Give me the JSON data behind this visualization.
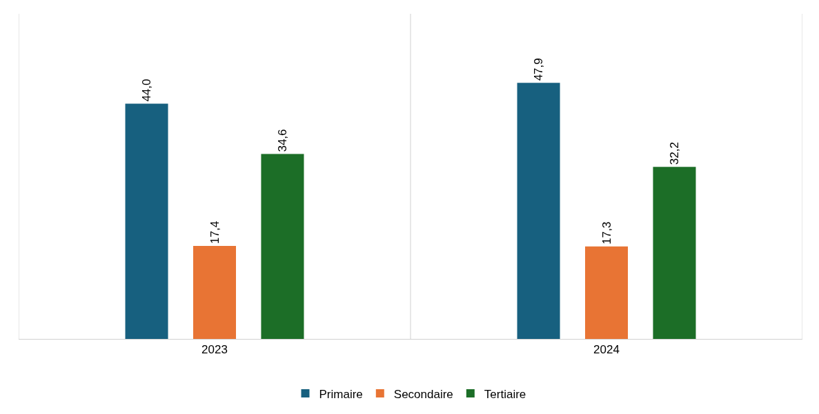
{
  "chart_data": {
    "type": "bar",
    "categories": [
      "2023",
      "2024"
    ],
    "series": [
      {
        "name": "Primaire",
        "color": "#17607f",
        "values": [
          44.0,
          47.9
        ],
        "value_labels": [
          "44,0",
          "47,9"
        ]
      },
      {
        "name": "Secondaire",
        "color": "#e87434",
        "values": [
          17.4,
          17.3
        ],
        "value_labels": [
          "17,4",
          "17,3"
        ]
      },
      {
        "name": "Tertiaire",
        "color": "#1c6e27",
        "values": [
          34.6,
          32.2
        ],
        "value_labels": [
          "34,6",
          "32,2"
        ]
      }
    ],
    "grid": "x",
    "legend": "bottom",
    "tick_labels": "x"
  }
}
